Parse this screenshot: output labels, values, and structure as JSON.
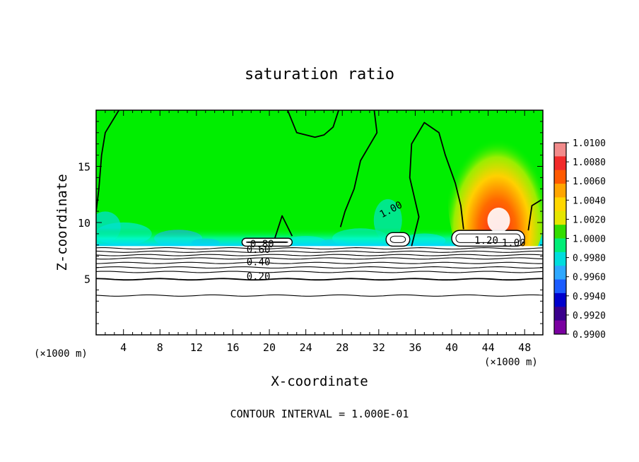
{
  "chart_data": {
    "type": "heatmap",
    "title": "saturation ratio",
    "xlabel": "X-coordinate",
    "ylabel": "Z-coordinate",
    "x_unit": "(×1000 m)",
    "z_unit": "(×1000 m)",
    "xlim": [
      1,
      50
    ],
    "ylim": [
      0,
      20
    ],
    "x_ticks": [
      4,
      8,
      12,
      16,
      20,
      24,
      28,
      32,
      36,
      40,
      44,
      48
    ],
    "y_ticks": [
      5,
      10,
      15
    ],
    "footer": "CONTOUR INTERVAL = 1.000E-01",
    "colorbar": {
      "ticks": [
        "1.0100",
        "1.0080",
        "1.0060",
        "1.0040",
        "1.0020",
        "1.0000",
        "0.9980",
        "0.9960",
        "0.9940",
        "0.9920",
        "0.9900"
      ],
      "colors": [
        "#f28b8b",
        "#f22a2a",
        "#ff5a00",
        "#ffa500",
        "#ffd700",
        "#e6e600",
        "#33dd00",
        "#00ee77",
        "#00dddd",
        "#2ea8ff",
        "#1b5cff",
        "#0000cc",
        "#3a008c",
        "#7a00a0"
      ]
    },
    "contour_labels": [
      {
        "text": "1.00",
        "x": 33.5,
        "z": 10.9
      },
      {
        "text": "1.20",
        "x": 43.8,
        "z": 8.1
      },
      {
        "text": "1.00",
        "x": 46.8,
        "z": 7.9
      },
      {
        "text": "0.80",
        "x": 19.2,
        "z": 7.8
      },
      {
        "text": "0.60",
        "x": 18.8,
        "z": 7.3
      },
      {
        "text": "0.40",
        "x": 18.8,
        "z": 6.2
      },
      {
        "text": "0.20",
        "x": 18.8,
        "z": 4.9
      }
    ],
    "regions": {
      "background": "#00ee00",
      "moist_layer_z": [
        7.9,
        9.5
      ],
      "plume_center_x": 45,
      "plume_peak_value": 1.01,
      "cloud_boxes": [
        {
          "x": [
            17.0,
            22.5
          ],
          "z": [
            7.9,
            8.6
          ]
        },
        {
          "x": [
            32.8,
            35.4
          ],
          "z": [
            7.9,
            9.1
          ]
        },
        {
          "x": [
            40.0,
            48.0
          ],
          "z": [
            7.9,
            9.3
          ]
        }
      ],
      "subsaturated_levels": [
        0.2,
        0.4,
        0.6,
        0.8
      ]
    }
  }
}
